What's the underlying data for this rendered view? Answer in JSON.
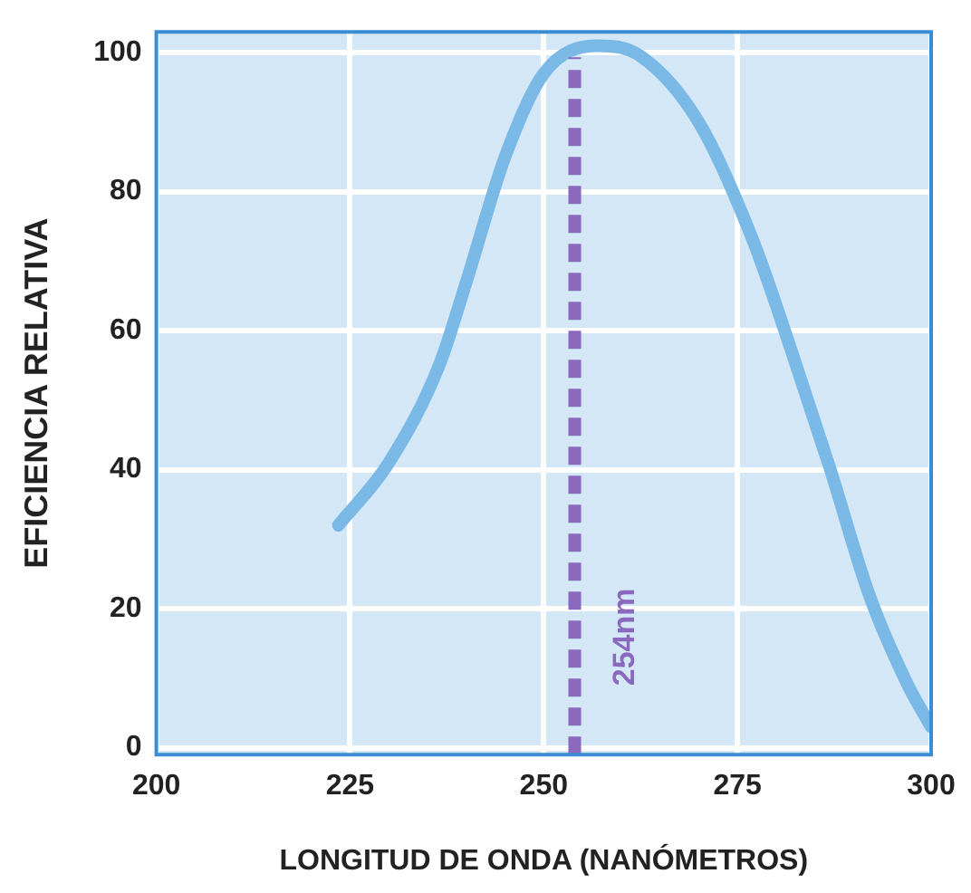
{
  "chart_data": {
    "type": "line",
    "xlabel": "LONGITUD DE ONDA (NANÓMETROS)",
    "ylabel": "EFICIENCIA RELATIVA",
    "xlim": [
      200,
      300
    ],
    "xticks": [
      200,
      225,
      250,
      275,
      300
    ],
    "ylim": [
      -1,
      103
    ],
    "yticks": [
      0,
      20,
      40,
      60,
      80,
      100
    ],
    "grid": true,
    "legend": false,
    "marker": "none",
    "line_style": "solid",
    "series": [
      {
        "color": "#7ab8e6",
        "x": [
          223.5,
          230,
          236.5,
          240,
          245,
          250,
          257,
          262.5,
          270,
          277,
          282,
          287,
          292,
          297,
          300
        ],
        "values": [
          32,
          41,
          55,
          67,
          85,
          97,
          101,
          99.5,
          90,
          73,
          57,
          40,
          22,
          9,
          3
        ]
      }
    ],
    "ref_lines": [
      {
        "axis": "x",
        "value": 254,
        "label": "254nm",
        "color": "#8a68bd",
        "line_style": "dashed"
      }
    ]
  }
}
